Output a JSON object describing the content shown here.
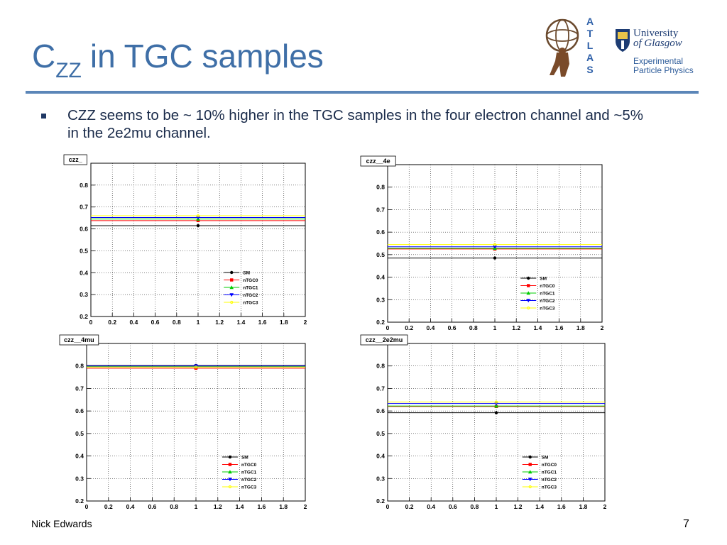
{
  "slide": {
    "title_main": "C",
    "title_sub": "ZZ",
    "title_rest": "in TGC samples",
    "bullet": "CZZ seems to be ~ 10% higher in the TGC samples in the four electron channel and ~5% in the 2e2mu channel.",
    "author": "Nick Edwards",
    "page_number": "7"
  },
  "logos": {
    "atlas_letters": [
      "A",
      "T",
      "L",
      "A",
      "S"
    ],
    "glasgow_line1": "University",
    "glasgow_line2": "of Glasgow",
    "glasgow_line3": "Experimental",
    "glasgow_line4": "Particle Physics"
  },
  "colors": {
    "title": "#3f6fa7",
    "rule": "#5b86b8",
    "SM": "#000000",
    "nTGC0": "#ff0000",
    "nTGC1": "#00cc00",
    "nTGC2": "#0000ff",
    "nTGC3": "#ffff00"
  },
  "chart_data": [
    {
      "type": "scatter",
      "title": "czz_",
      "xlim": [
        0,
        2
      ],
      "ylim": [
        0.2,
        0.9
      ],
      "xticks": [
        "0",
        "0.2",
        "0.4",
        "0.6",
        "0.8",
        "1",
        "1.2",
        "1.4",
        "1.6",
        "1.8",
        "2"
      ],
      "yticks": [
        "0.2",
        "0.3",
        "0.4",
        "0.5",
        "0.6",
        "0.7",
        "0.8"
      ],
      "grid": true,
      "legend_placement": "bottom-right",
      "series": [
        {
          "name": "SM",
          "x": 1,
          "y": 0.615
        },
        {
          "name": "nTGC0",
          "x": 1,
          "y": 0.638
        },
        {
          "name": "nTGC1",
          "x": 1,
          "y": 0.645
        },
        {
          "name": "nTGC2",
          "x": 1,
          "y": 0.652
        },
        {
          "name": "nTGC3",
          "x": 1,
          "y": 0.66
        }
      ]
    },
    {
      "type": "scatter",
      "title": "czz__4e",
      "xlim": [
        0,
        2
      ],
      "ylim": [
        0.2,
        0.9
      ],
      "xticks": [
        "0",
        "0.2",
        "0.4",
        "0.6",
        "0.8",
        "1",
        "1.2",
        "1.4",
        "1.6",
        "1.8",
        "2"
      ],
      "yticks": [
        "0.2",
        "0.3",
        "0.4",
        "0.5",
        "0.6",
        "0.7",
        "0.8"
      ],
      "grid": true,
      "legend_placement": "bottom-right",
      "series": [
        {
          "name": "SM",
          "x": 1,
          "y": 0.485
        },
        {
          "name": "nTGC0",
          "x": 1,
          "y": 0.525
        },
        {
          "name": "nTGC1",
          "x": 1,
          "y": 0.528
        },
        {
          "name": "nTGC2",
          "x": 1,
          "y": 0.535
        },
        {
          "name": "nTGC3",
          "x": 1,
          "y": 0.545
        }
      ]
    },
    {
      "type": "scatter",
      "title": "czz__4mu",
      "xlim": [
        0,
        2
      ],
      "ylim": [
        0.2,
        0.9
      ],
      "xticks": [
        "0",
        "0.2",
        "0.4",
        "0.6",
        "0.8",
        "1",
        "1.2",
        "1.4",
        "1.6",
        "1.8",
        "2"
      ],
      "yticks": [
        "0.2",
        "0.3",
        "0.4",
        "0.5",
        "0.6",
        "0.7",
        "0.8"
      ],
      "grid": true,
      "legend_placement": "bottom-right",
      "series": [
        {
          "name": "SM",
          "x": 1,
          "y": 0.802
        },
        {
          "name": "nTGC0",
          "x": 1,
          "y": 0.79
        },
        {
          "name": "nTGC1",
          "x": 1,
          "y": 0.798
        },
        {
          "name": "nTGC2",
          "x": 1,
          "y": 0.8
        },
        {
          "name": "nTGC3",
          "x": 1,
          "y": 0.795
        }
      ]
    },
    {
      "type": "scatter",
      "title": "czz__2e2mu",
      "xlim": [
        0,
        2
      ],
      "ylim": [
        0.2,
        0.9
      ],
      "xticks": [
        "0",
        "0.2",
        "0.4",
        "0.6",
        "0.8",
        "1",
        "1.2",
        "1.4",
        "1.6",
        "1.8",
        "2"
      ],
      "yticks": [
        "0.2",
        "0.3",
        "0.4",
        "0.5",
        "0.6",
        "0.7",
        "0.8"
      ],
      "grid": true,
      "legend_placement": "bottom-right",
      "series": [
        {
          "name": "SM",
          "x": 1,
          "y": 0.592
        },
        {
          "name": "nTGC0",
          "x": 1,
          "y": 0.62
        },
        {
          "name": "nTGC1",
          "x": 1,
          "y": 0.622
        },
        {
          "name": "nTGC2",
          "x": 1,
          "y": 0.633
        },
        {
          "name": "nTGC3",
          "x": 1,
          "y": 0.64
        }
      ]
    }
  ]
}
